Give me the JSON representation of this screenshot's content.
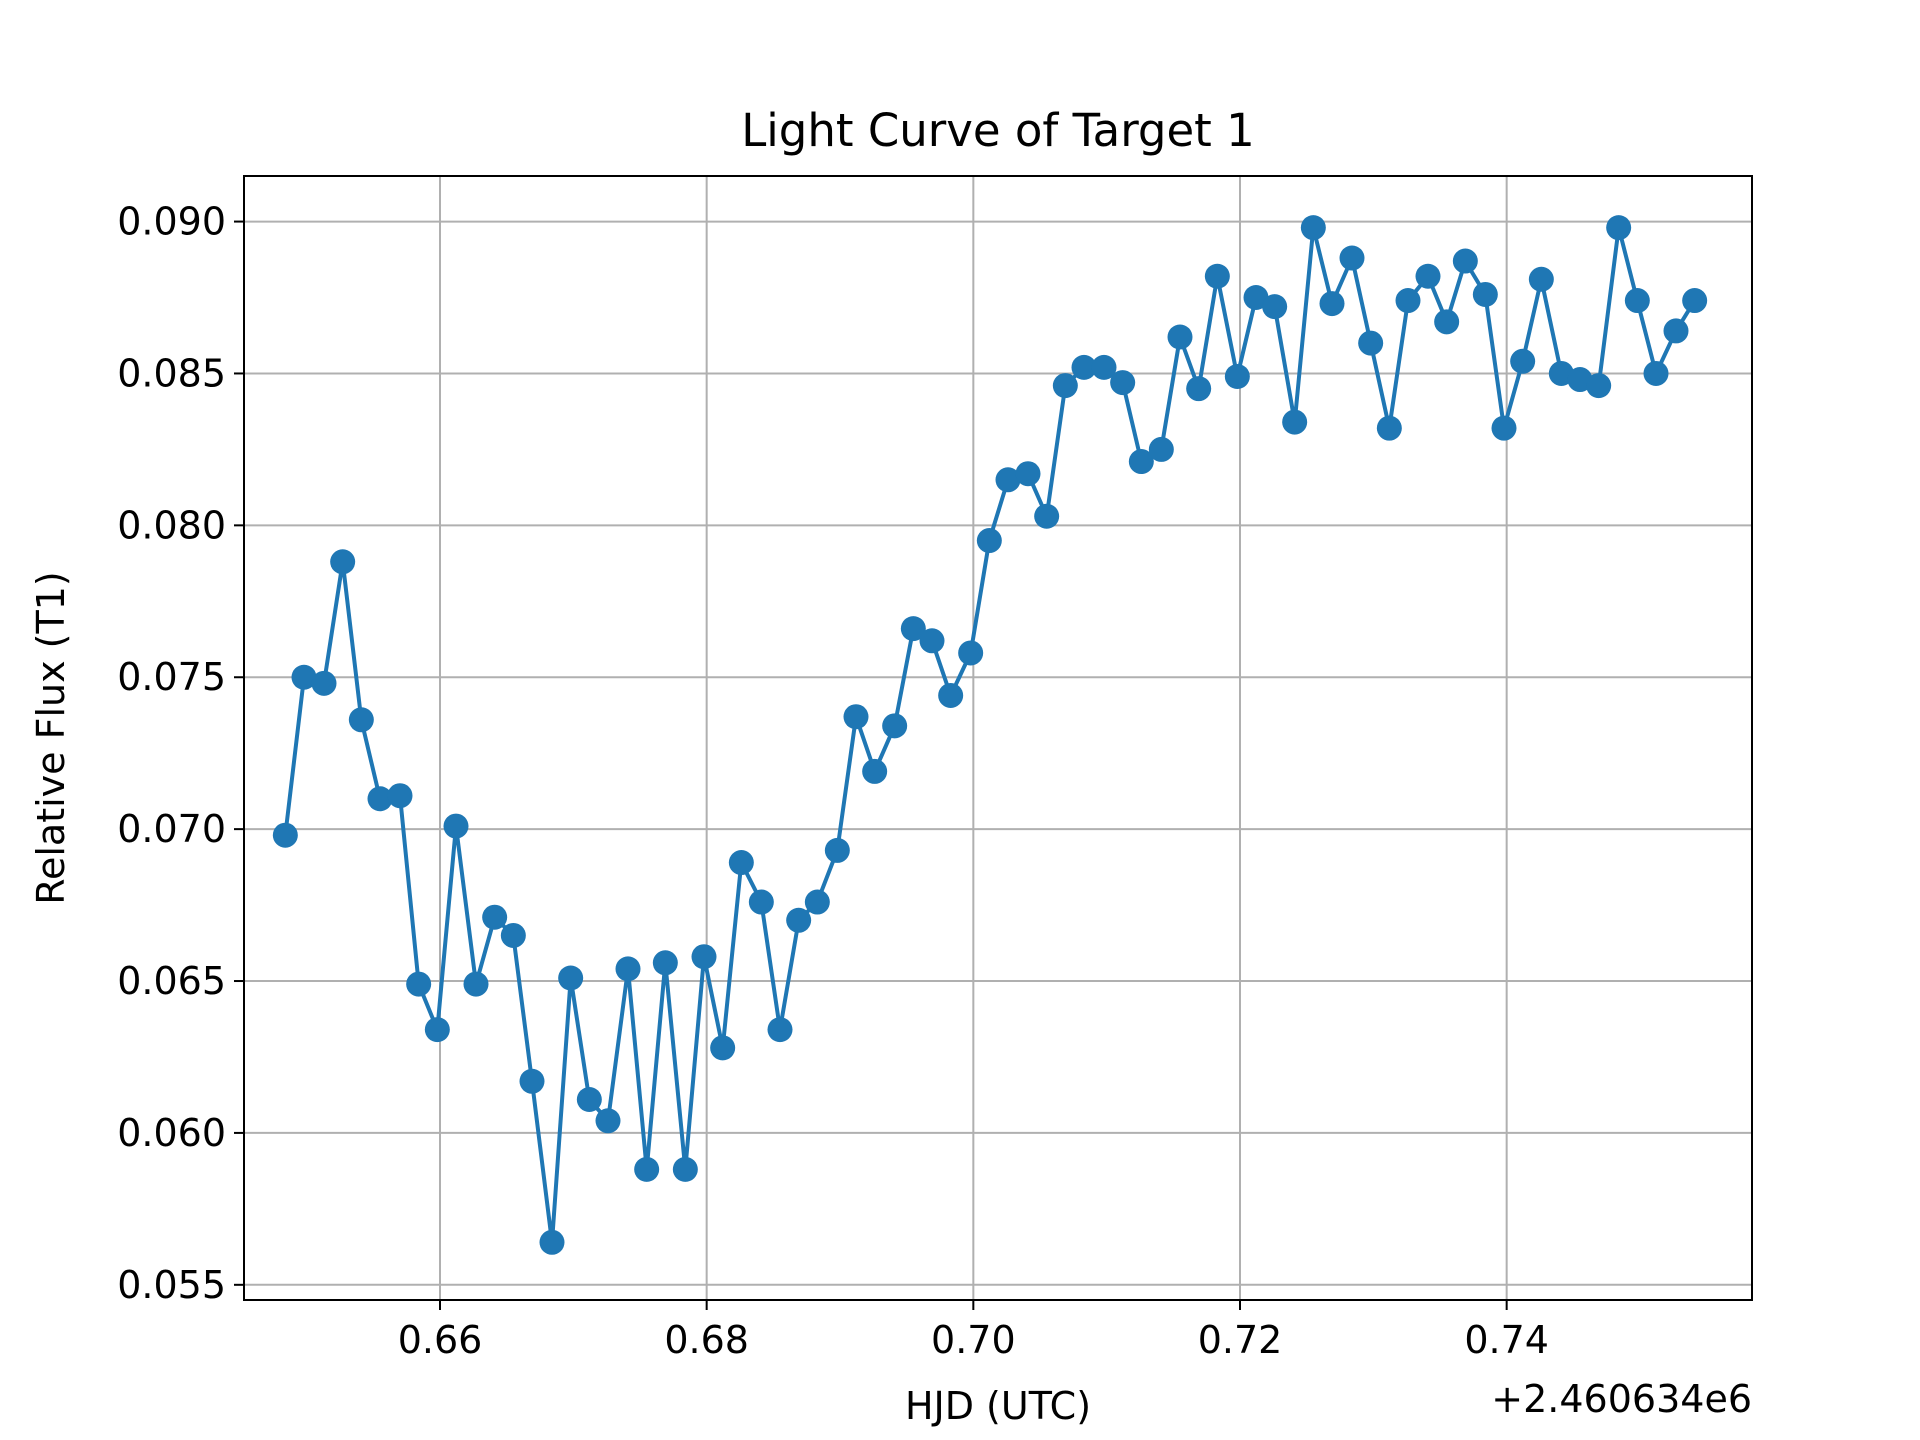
{
  "chart_data": {
    "type": "line",
    "title": "Light Curve of Target 1",
    "xlabel": "HJD (UTC)",
    "ylabel": "Relative Flux (T1)",
    "x_offset_label": "+2.460634e6",
    "x_offset": 2460634,
    "xlim": [
      0.6453,
      0.7584
    ],
    "ylim": [
      0.0545,
      0.0915
    ],
    "xticks": [
      0.66,
      0.68,
      0.7,
      0.72,
      0.74
    ],
    "xtick_labels": [
      "0.66",
      "0.68",
      "0.70",
      "0.72",
      "0.74"
    ],
    "yticks": [
      0.055,
      0.06,
      0.065,
      0.07,
      0.075,
      0.08,
      0.085,
      0.09
    ],
    "ytick_labels": [
      "0.055",
      "0.060",
      "0.065",
      "0.070",
      "0.075",
      "0.080",
      "0.085",
      "0.090"
    ],
    "grid": true,
    "marker": "circle",
    "color": "#1f77b4",
    "series": [
      {
        "x": [
          0.6484,
          0.6498,
          0.6513,
          0.6527,
          0.6541,
          0.6555,
          0.657,
          0.6584,
          0.6598,
          0.6612,
          0.6627,
          0.6641,
          0.6655,
          0.6669,
          0.6684,
          0.6698,
          0.6712,
          0.6726,
          0.6741,
          0.6755,
          0.6769,
          0.6784,
          0.6798,
          0.6812,
          0.6826,
          0.6841,
          0.6855,
          0.6869,
          0.6883,
          0.6898,
          0.6912,
          0.6926,
          0.6941,
          0.6955,
          0.6969,
          0.6983,
          0.6998,
          0.7012,
          0.7026,
          0.7041,
          0.7055,
          0.7069,
          0.7083,
          0.7098,
          0.7112,
          0.7126,
          0.7141,
          0.7155,
          0.7169,
          0.7183,
          0.7198,
          0.7212,
          0.7226,
          0.7241,
          0.7255,
          0.7269,
          0.7284,
          0.7298,
          0.7312,
          0.7326,
          0.7341,
          0.7355,
          0.7369,
          0.7384,
          0.7398,
          0.7412,
          0.7426,
          0.7441,
          0.7455,
          0.7469,
          0.7484,
          0.7498,
          0.7512,
          0.7527,
          0.7541
        ],
        "values": [
          0.0698,
          0.075,
          0.0748,
          0.0788,
          0.0736,
          0.071,
          0.0711,
          0.0649,
          0.0634,
          0.0701,
          0.0649,
          0.0671,
          0.0665,
          0.0617,
          0.0564,
          0.0651,
          0.0611,
          0.0604,
          0.0654,
          0.0588,
          0.0656,
          0.0588,
          0.0658,
          0.0628,
          0.0689,
          0.0676,
          0.0634,
          0.067,
          0.0676,
          0.0693,
          0.0737,
          0.0719,
          0.0734,
          0.0766,
          0.0762,
          0.0744,
          0.0758,
          0.0795,
          0.0815,
          0.0817,
          0.0803,
          0.0846,
          0.0852,
          0.0852,
          0.0847,
          0.0821,
          0.0825,
          0.0862,
          0.0845,
          0.0882,
          0.0849,
          0.0875,
          0.0872,
          0.0834,
          0.0898,
          0.0873,
          0.0888,
          0.086,
          0.0832,
          0.0874,
          0.0882,
          0.0867,
          0.0887,
          0.0876,
          0.0832,
          0.0854,
          0.0881,
          0.085,
          0.0848,
          0.0846,
          0.0898,
          0.0874,
          0.085,
          0.0864,
          0.0874
        ]
      }
    ]
  }
}
